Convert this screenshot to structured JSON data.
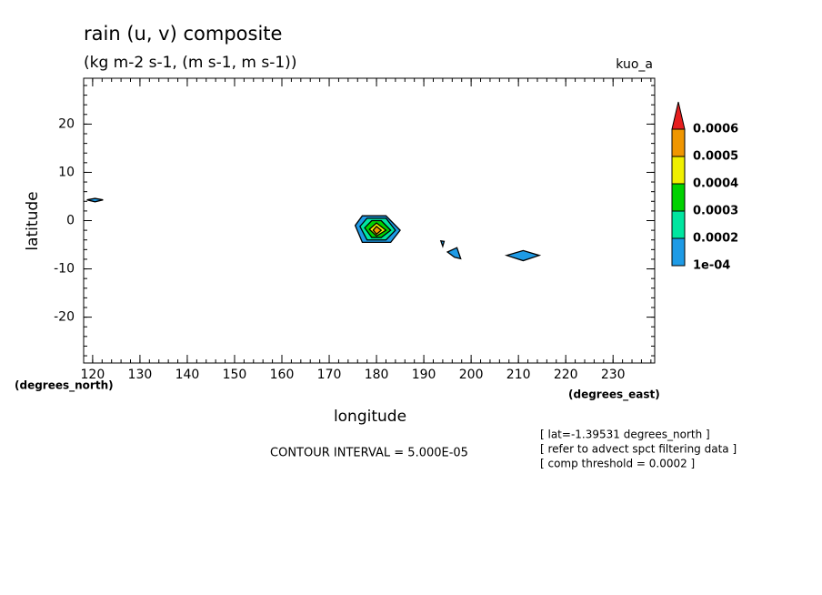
{
  "chart_data": {
    "type": "contour",
    "title": "rain (u, v) composite",
    "subtitle": "(kg m-2 s-1, (m s-1, m s-1))",
    "run_label": "kuo_a",
    "xlabel": "longitude",
    "ylabel": "latitude",
    "x_units": "(degrees_east)",
    "y_units": "(degrees_north)",
    "xlim": [
      118.1,
      238.8
    ],
    "ylim": [
      -29.5,
      29.5
    ],
    "xticks": [
      120,
      130,
      140,
      150,
      160,
      170,
      180,
      190,
      200,
      210,
      220,
      230
    ],
    "yticks": [
      -20,
      -10,
      0,
      10,
      20
    ],
    "contour_interval": "CONTOUR INTERVAL = 5.000E-05",
    "notes": [
      "[ lat=-1.39531 degrees_north ]",
      "[ refer to advect spct filtering data ]",
      "[ comp threshold = 0.0002 ]"
    ],
    "colorbar": {
      "levels": [
        {
          "value": 0.0001,
          "label": "1e-04"
        },
        0.0002,
        0.0003,
        0.0004,
        0.0005,
        0.0006
      ],
      "colors": [
        "#1e9be6",
        "#00e6a0",
        "#00d200",
        "#f0f000",
        "#f09600",
        "#e61e1e"
      ]
    },
    "contours": [
      {
        "level": 0.0001,
        "lon": [
          175.5,
          177,
          182,
          185,
          183,
          177
        ],
        "lat": [
          -1,
          1,
          1,
          -2,
          -4.5,
          -4.5
        ]
      },
      {
        "level": 0.0002,
        "lon": [
          176.5,
          178,
          182,
          184,
          182,
          178
        ],
        "lat": [
          -1.2,
          0.5,
          0.5,
          -2,
          -4,
          -4
        ]
      },
      {
        "level": 0.0003,
        "lon": [
          177.5,
          179,
          181,
          183,
          181,
          179
        ],
        "lat": [
          -1.5,
          0,
          0,
          -2,
          -3.5,
          -3.5
        ]
      },
      {
        "level": 0.0004,
        "lon": [
          178.5,
          180,
          182,
          180
        ],
        "lat": [
          -1.8,
          -0.5,
          -2,
          -3.2
        ]
      },
      {
        "level": 0.0005,
        "lon": [
          179.3,
          180,
          181,
          180
        ],
        "lat": [
          -2,
          -1.2,
          -2,
          -2.8
        ]
      },
      {
        "level": 0.0001,
        "lon": [
          118.8,
          120.5,
          122.2,
          120.5
        ],
        "lat": [
          4.3,
          4.6,
          4.3,
          3.9
        ]
      },
      {
        "level": 0.0001,
        "lon": [
          195,
          197,
          197.8,
          196.5
        ],
        "lat": [
          -6.5,
          -5.6,
          -7.9,
          -7.6
        ]
      },
      {
        "level": 0.0001,
        "lon": [
          193.6,
          194.3,
          194
        ],
        "lat": [
          -4.2,
          -4.3,
          -5.3
        ]
      },
      {
        "level": 0.0001,
        "lon": [
          207.5,
          211,
          214.4,
          211
        ],
        "lat": [
          -7.2,
          -6.2,
          -7.2,
          -8.3
        ]
      }
    ]
  }
}
